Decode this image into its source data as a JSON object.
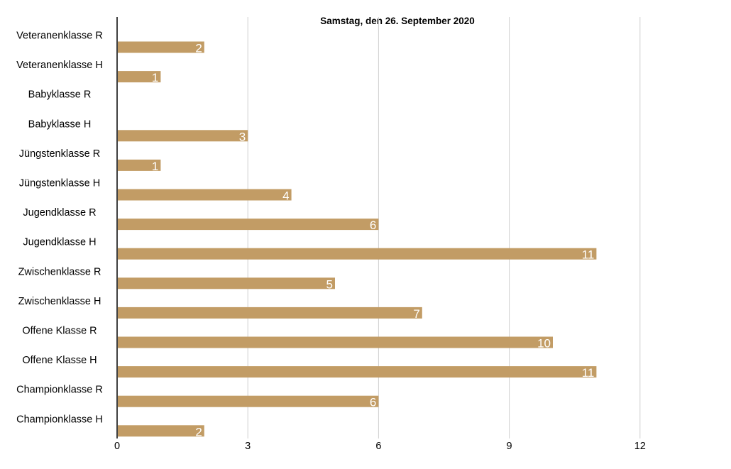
{
  "chart_data": {
    "type": "bar",
    "orientation": "horizontal",
    "title": "Samstag, den 26. September 2020",
    "categories": [
      "Veteranenklasse R",
      "Veteranenklasse H",
      "Babyklasse R",
      "Babyklasse H",
      "Jüngstenklasse R",
      "Jüngstenklasse H",
      "Jugendklasse R",
      "Jugendklasse H",
      "Zwischenklasse R",
      "Zwischenklasse H",
      "Offene Klasse R",
      "Offene Klasse H",
      "Championklasse R",
      "Championklasse H"
    ],
    "values": [
      2,
      1,
      null,
      3,
      1,
      4,
      6,
      11,
      5,
      7,
      10,
      11,
      6,
      2
    ],
    "xlabel": "",
    "ylabel": "",
    "xlim": [
      0,
      13
    ],
    "x_ticks": [
      0,
      3,
      6,
      9,
      12
    ],
    "grid": "vertical",
    "legend": "none",
    "data_labels": true,
    "colors": {
      "bar": "#c29c65",
      "grid": "#cfcfcf",
      "axis": "#000000",
      "data_label": "#ffffff"
    }
  }
}
